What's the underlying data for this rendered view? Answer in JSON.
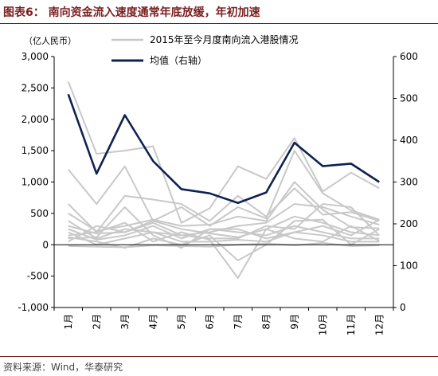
{
  "title": "图表6：  南向资金流入速度通常年底放缓，年初加速",
  "source": "资料来源：Wind，华泰研究",
  "chart_data": {
    "type": "line",
    "title": "图表6：  南向资金流入速度通常年底放缓，年初加速",
    "left_axis": {
      "unit_label": "（亿人民币）",
      "ylim": [
        -1000,
        3000
      ],
      "ticks": [
        -1000,
        -500,
        0,
        500,
        1000,
        1500,
        2000,
        2500,
        3000
      ],
      "tick_labels": [
        "-1,000",
        "-500",
        "0",
        "500",
        "1,000",
        "1,500",
        "2,000",
        "2,500",
        "3,000"
      ]
    },
    "right_axis": {
      "ylim": [
        0,
        600
      ],
      "ticks": [
        0,
        100,
        200,
        300,
        400,
        500,
        600
      ],
      "tick_labels": [
        "0",
        "100",
        "200",
        "300",
        "400",
        "500",
        "600"
      ]
    },
    "categories": [
      "1月",
      "2月",
      "3月",
      "4月",
      "5月",
      "6月",
      "7月",
      "8月",
      "9月",
      "10月",
      "11月",
      "12月"
    ],
    "legend": {
      "placement": "top",
      "entries": [
        "2015年至今月度南向流入港股情况",
        "均值（右轴）"
      ]
    },
    "colors": {
      "history": "#c8c8c8",
      "mean": "#0d2250"
    },
    "history_series": [
      [
        2600,
        1450,
        1500,
        1570,
        350,
        580,
        1250,
        1050,
        1700,
        850,
        1150,
        900
      ],
      [
        1200,
        650,
        1250,
        380,
        600,
        300,
        600,
        420,
        1500,
        820,
        550,
        400
      ],
      [
        650,
        200,
        780,
        720,
        650,
        380,
        780,
        450,
        900,
        480,
        520,
        380
      ],
      [
        500,
        220,
        300,
        400,
        300,
        320,
        450,
        380,
        1000,
        560,
        280,
        260
      ],
      [
        380,
        100,
        250,
        200,
        150,
        200,
        300,
        350,
        650,
        600,
        450,
        320
      ],
      [
        300,
        180,
        200,
        380,
        250,
        180,
        120,
        250,
        450,
        350,
        200,
        150
      ],
      [
        250,
        80,
        150,
        300,
        100,
        250,
        200,
        150,
        300,
        200,
        100,
        100
      ],
      [
        200,
        0,
        100,
        200,
        50,
        50,
        80,
        50,
        200,
        150,
        50,
        50
      ],
      [
        150,
        200,
        350,
        50,
        200,
        80,
        -530,
        250,
        100,
        50,
        300,
        60
      ],
      [
        120,
        50,
        -50,
        100,
        0,
        150,
        -250,
        0,
        380,
        400,
        0,
        250
      ],
      [
        100,
        120,
        600,
        150,
        -50,
        250,
        250,
        100,
        200,
        300,
        150,
        400
      ],
      [
        50,
        300,
        200,
        350,
        150,
        100,
        100,
        300,
        250,
        650,
        600,
        150
      ],
      [
        -20,
        -30,
        -40,
        -10,
        -20,
        -30,
        0,
        20,
        -10,
        30,
        -20,
        -10
      ]
    ],
    "series": [
      {
        "name": "均值（右轴）",
        "axis": "right",
        "values": [
          510,
          320,
          460,
          350,
          283,
          273,
          250,
          275,
          394,
          338,
          344,
          300
        ]
      }
    ]
  }
}
